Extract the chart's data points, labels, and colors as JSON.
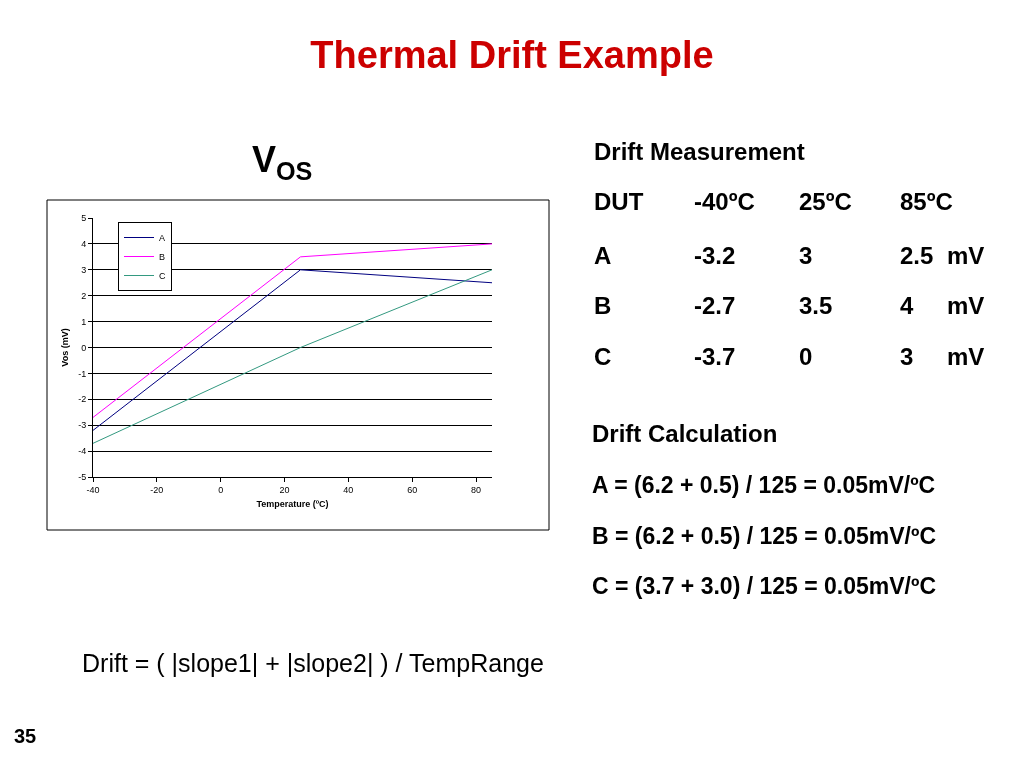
{
  "chart_data": {
    "type": "line",
    "title": "Thermal Drift Example",
    "subtitle": "V$_{OS}$",
    "xlabel": "Temperature (ºC)",
    "ylabel": "Vos (mV)",
    "x": [
      -40,
      25,
      85
    ],
    "series": [
      {
        "name": "A",
        "color": "#000080",
        "values": [
          -3.2,
          3,
          2.5
        ]
      },
      {
        "name": "B",
        "color": "#ff00ff",
        "values": [
          -2.7,
          3.5,
          4
        ]
      },
      {
        "name": "C",
        "color": "#339980",
        "values": [
          -3.7,
          0,
          3
        ]
      }
    ],
    "xlim": [
      -40,
      85
    ],
    "xticks": [
      -40,
      -20,
      0,
      20,
      40,
      60,
      80
    ],
    "ylim": [
      -5,
      5
    ],
    "yticks": [
      -5,
      -4,
      -3,
      -2,
      -1,
      0,
      1,
      2,
      3,
      4,
      5
    ],
    "grid": "y",
    "legend": "top left",
    "annotations": [
      "Drift Measurement",
      "DUT",
      "-40ºC",
      "25ºC",
      "85ºC",
      "A",
      "-3.2",
      "3",
      "2.5",
      "mV",
      "B",
      "-2.7",
      "3.5",
      "4",
      "mV",
      "C",
      "-3.7",
      "0",
      "3",
      "mV",
      "Drift Calculation",
      "A = (6.2 + 0.5) / 125 = 0.05mV/ºC",
      "B = (6.2 + 0.5) / 125 = 0.05mV/ºC",
      "C = (3.7 + 3.0) / 125 = 0.05mV/ºC",
      "Drift = ( |slope1| + |slope2| ) / TempRange",
      "35"
    ]
  }
}
